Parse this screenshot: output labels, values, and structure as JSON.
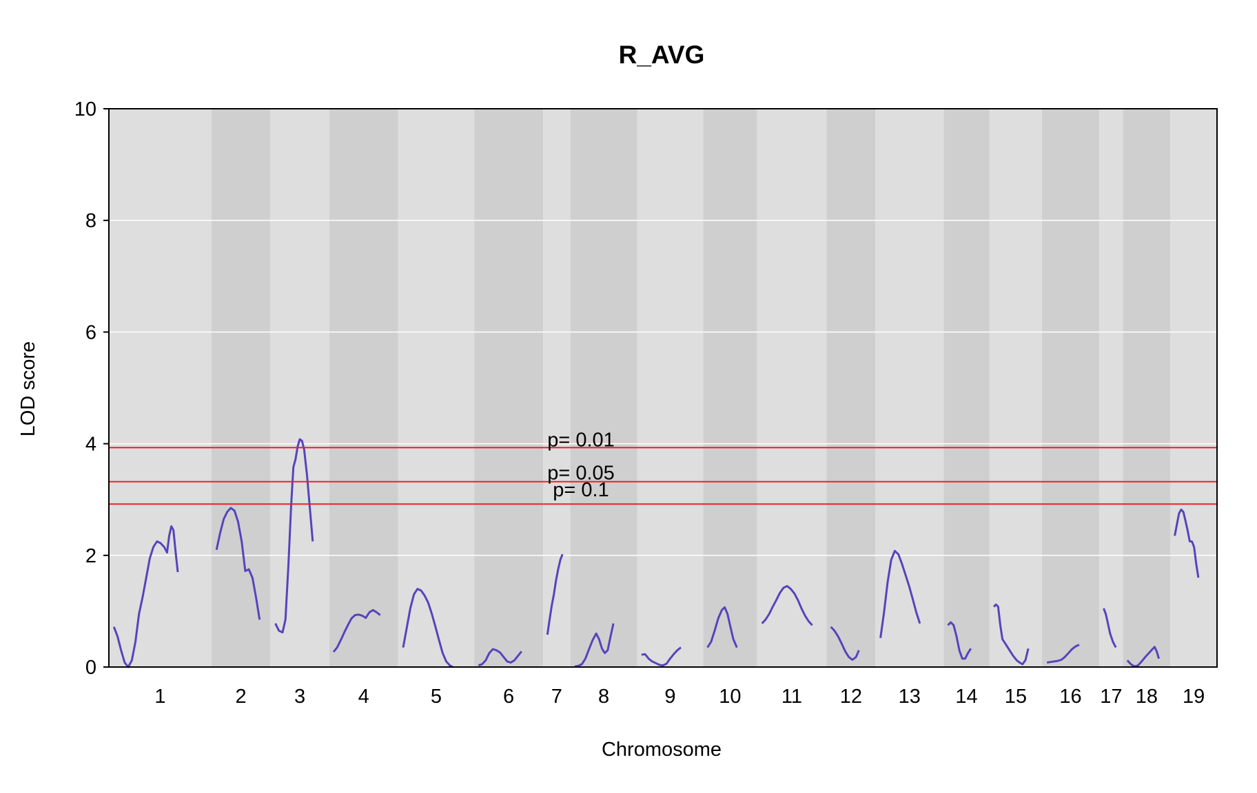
{
  "chart_data": {
    "type": "line",
    "title": "R_AVG",
    "xlabel": "Chromosome",
    "ylabel": "LOD score",
    "ylim": [
      0,
      10
    ],
    "yticks": [
      0,
      2,
      4,
      6,
      8,
      10
    ],
    "grid": true,
    "colors": {
      "curve": "#5544bb",
      "threshold": "#e8222a",
      "band_light": "#dedede",
      "band_dark": "#cfcfcf",
      "gridline": "#ffffff"
    },
    "thresholds": [
      {
        "label": "p= 0.01",
        "value": 3.93
      },
      {
        "label": "p= 0.05",
        "value": 3.32
      },
      {
        "label": "p= 0.1",
        "value": 2.92
      }
    ],
    "chromosomes": [
      {
        "label": "1",
        "span": [
          0,
          143
        ],
        "points": [
          [
            7,
            0.72
          ],
          [
            12,
            0.55
          ],
          [
            17,
            0.3
          ],
          [
            22,
            0.08
          ],
          [
            27,
            0.0
          ],
          [
            32,
            0.12
          ],
          [
            37,
            0.45
          ],
          [
            42,
            0.95
          ],
          [
            47,
            1.25
          ],
          [
            52,
            1.6
          ],
          [
            57,
            1.95
          ],
          [
            62,
            2.15
          ],
          [
            67,
            2.25
          ],
          [
            72,
            2.22
          ],
          [
            77,
            2.15
          ],
          [
            81,
            2.05
          ],
          [
            84,
            2.35
          ],
          [
            87,
            2.52
          ],
          [
            90,
            2.45
          ],
          [
            93,
            2.05
          ],
          [
            96,
            1.7
          ]
        ]
      },
      {
        "label": "2",
        "span": [
          143,
          225
        ],
        "points": [
          [
            150,
            2.1
          ],
          [
            155,
            2.4
          ],
          [
            160,
            2.65
          ],
          [
            165,
            2.78
          ],
          [
            170,
            2.85
          ],
          [
            175,
            2.8
          ],
          [
            180,
            2.6
          ],
          [
            185,
            2.25
          ],
          [
            190,
            1.72
          ],
          [
            195,
            1.75
          ],
          [
            200,
            1.6
          ],
          [
            205,
            1.25
          ],
          [
            210,
            0.85
          ]
        ]
      },
      {
        "label": "3",
        "span": [
          225,
          307
        ],
        "points": [
          [
            232,
            0.78
          ],
          [
            237,
            0.65
          ],
          [
            242,
            0.62
          ],
          [
            246,
            0.85
          ],
          [
            250,
            1.8
          ],
          [
            254,
            2.9
          ],
          [
            257,
            3.58
          ],
          [
            260,
            3.72
          ],
          [
            263,
            3.95
          ],
          [
            266,
            4.08
          ],
          [
            269,
            4.05
          ],
          [
            272,
            3.9
          ],
          [
            276,
            3.45
          ],
          [
            280,
            2.85
          ],
          [
            284,
            2.25
          ]
        ]
      },
      {
        "label": "4",
        "span": [
          307,
          403
        ],
        "points": [
          [
            313,
            0.27
          ],
          [
            318,
            0.35
          ],
          [
            323,
            0.48
          ],
          [
            328,
            0.62
          ],
          [
            333,
            0.75
          ],
          [
            338,
            0.87
          ],
          [
            343,
            0.93
          ],
          [
            348,
            0.94
          ],
          [
            353,
            0.92
          ],
          [
            358,
            0.88
          ],
          [
            363,
            0.98
          ],
          [
            368,
            1.02
          ],
          [
            373,
            0.98
          ],
          [
            378,
            0.93
          ]
        ]
      },
      {
        "label": "5",
        "span": [
          403,
          509
        ],
        "points": [
          [
            410,
            0.35
          ],
          [
            415,
            0.7
          ],
          [
            420,
            1.05
          ],
          [
            425,
            1.3
          ],
          [
            430,
            1.4
          ],
          [
            435,
            1.37
          ],
          [
            440,
            1.28
          ],
          [
            445,
            1.15
          ],
          [
            450,
            0.95
          ],
          [
            455,
            0.72
          ],
          [
            460,
            0.48
          ],
          [
            465,
            0.25
          ],
          [
            470,
            0.1
          ],
          [
            475,
            0.03
          ],
          [
            479,
            0.0
          ]
        ]
      },
      {
        "label": "6",
        "span": [
          509,
          605
        ],
        "points": [
          [
            515,
            0.03
          ],
          [
            520,
            0.05
          ],
          [
            525,
            0.12
          ],
          [
            530,
            0.25
          ],
          [
            535,
            0.32
          ],
          [
            540,
            0.3
          ],
          [
            545,
            0.26
          ],
          [
            550,
            0.18
          ],
          [
            555,
            0.1
          ],
          [
            560,
            0.08
          ],
          [
            565,
            0.12
          ],
          [
            570,
            0.2
          ],
          [
            575,
            0.28
          ]
        ]
      },
      {
        "label": "7",
        "span": [
          605,
          643
        ],
        "points": [
          [
            611,
            0.58
          ],
          [
            614,
            0.85
          ],
          [
            617,
            1.1
          ],
          [
            620,
            1.3
          ],
          [
            623,
            1.55
          ],
          [
            626,
            1.75
          ],
          [
            629,
            1.92
          ],
          [
            632,
            2.02
          ]
        ]
      },
      {
        "label": "8",
        "span": [
          643,
          736
        ],
        "points": [
          [
            649,
            0.01
          ],
          [
            654,
            0.02
          ],
          [
            659,
            0.05
          ],
          [
            664,
            0.15
          ],
          [
            669,
            0.32
          ],
          [
            674,
            0.48
          ],
          [
            679,
            0.6
          ],
          [
            683,
            0.5
          ],
          [
            687,
            0.33
          ],
          [
            691,
            0.25
          ],
          [
            695,
            0.3
          ],
          [
            699,
            0.55
          ],
          [
            703,
            0.78
          ]
        ]
      },
      {
        "label": "9",
        "span": [
          736,
          828
        ],
        "points": [
          [
            742,
            0.22
          ],
          [
            747,
            0.23
          ],
          [
            752,
            0.15
          ],
          [
            757,
            0.1
          ],
          [
            762,
            0.07
          ],
          [
            767,
            0.04
          ],
          [
            772,
            0.03
          ],
          [
            777,
            0.06
          ],
          [
            782,
            0.15
          ],
          [
            787,
            0.23
          ],
          [
            792,
            0.3
          ],
          [
            797,
            0.35
          ]
        ]
      },
      {
        "label": "10",
        "span": [
          828,
          903
        ],
        "points": [
          [
            834,
            0.35
          ],
          [
            839,
            0.45
          ],
          [
            844,
            0.65
          ],
          [
            849,
            0.87
          ],
          [
            854,
            1.02
          ],
          [
            858,
            1.07
          ],
          [
            862,
            0.95
          ],
          [
            866,
            0.72
          ],
          [
            870,
            0.5
          ],
          [
            875,
            0.35
          ]
        ]
      },
      {
        "label": "11",
        "span": [
          903,
          1000
        ],
        "points": [
          [
            910,
            0.78
          ],
          [
            915,
            0.85
          ],
          [
            920,
            0.95
          ],
          [
            925,
            1.08
          ],
          [
            930,
            1.2
          ],
          [
            935,
            1.33
          ],
          [
            940,
            1.42
          ],
          [
            945,
            1.45
          ],
          [
            950,
            1.4
          ],
          [
            955,
            1.32
          ],
          [
            960,
            1.2
          ],
          [
            965,
            1.05
          ],
          [
            970,
            0.92
          ],
          [
            975,
            0.82
          ],
          [
            980,
            0.75
          ]
        ]
      },
      {
        "label": "12",
        "span": [
          1000,
          1068
        ],
        "points": [
          [
            1006,
            0.72
          ],
          [
            1011,
            0.65
          ],
          [
            1016,
            0.55
          ],
          [
            1021,
            0.42
          ],
          [
            1026,
            0.28
          ],
          [
            1031,
            0.18
          ],
          [
            1036,
            0.13
          ],
          [
            1041,
            0.18
          ],
          [
            1045,
            0.3
          ]
        ]
      },
      {
        "label": "13",
        "span": [
          1068,
          1163
        ],
        "points": [
          [
            1075,
            0.52
          ],
          [
            1080,
            0.98
          ],
          [
            1085,
            1.52
          ],
          [
            1090,
            1.92
          ],
          [
            1095,
            2.08
          ],
          [
            1100,
            2.02
          ],
          [
            1105,
            1.85
          ],
          [
            1110,
            1.65
          ],
          [
            1115,
            1.45
          ],
          [
            1120,
            1.22
          ],
          [
            1125,
            0.98
          ],
          [
            1130,
            0.78
          ]
        ]
      },
      {
        "label": "14",
        "span": [
          1163,
          1227
        ],
        "points": [
          [
            1169,
            0.75
          ],
          [
            1173,
            0.8
          ],
          [
            1177,
            0.75
          ],
          [
            1181,
            0.55
          ],
          [
            1185,
            0.3
          ],
          [
            1189,
            0.15
          ],
          [
            1193,
            0.15
          ],
          [
            1197,
            0.25
          ],
          [
            1201,
            0.33
          ]
        ]
      },
      {
        "label": "15",
        "span": [
          1227,
          1300
        ],
        "points": [
          [
            1233,
            1.08
          ],
          [
            1236,
            1.12
          ],
          [
            1239,
            1.08
          ],
          [
            1242,
            0.75
          ],
          [
            1245,
            0.5
          ],
          [
            1250,
            0.4
          ],
          [
            1255,
            0.3
          ],
          [
            1260,
            0.2
          ],
          [
            1265,
            0.12
          ],
          [
            1269,
            0.08
          ],
          [
            1273,
            0.05
          ],
          [
            1277,
            0.12
          ],
          [
            1281,
            0.33
          ]
        ]
      },
      {
        "label": "16",
        "span": [
          1300,
          1380
        ],
        "points": [
          [
            1307,
            0.08
          ],
          [
            1312,
            0.09
          ],
          [
            1317,
            0.1
          ],
          [
            1322,
            0.11
          ],
          [
            1327,
            0.13
          ],
          [
            1332,
            0.18
          ],
          [
            1337,
            0.25
          ],
          [
            1342,
            0.32
          ],
          [
            1347,
            0.37
          ],
          [
            1352,
            0.4
          ]
        ]
      },
      {
        "label": "17",
        "span": [
          1380,
          1413
        ],
        "points": [
          [
            1386,
            1.05
          ],
          [
            1389,
            0.95
          ],
          [
            1392,
            0.78
          ],
          [
            1395,
            0.6
          ],
          [
            1399,
            0.45
          ],
          [
            1403,
            0.35
          ]
        ]
      },
      {
        "label": "18",
        "span": [
          1413,
          1479
        ],
        "points": [
          [
            1419,
            0.12
          ],
          [
            1424,
            0.05
          ],
          [
            1429,
            0.01
          ],
          [
            1434,
            0.03
          ],
          [
            1439,
            0.1
          ],
          [
            1444,
            0.18
          ],
          [
            1449,
            0.25
          ],
          [
            1454,
            0.32
          ],
          [
            1457,
            0.36
          ],
          [
            1460,
            0.28
          ],
          [
            1463,
            0.15
          ]
        ]
      },
      {
        "label": "19",
        "span": [
          1479,
          1544
        ],
        "points": [
          [
            1485,
            2.35
          ],
          [
            1488,
            2.55
          ],
          [
            1491,
            2.75
          ],
          [
            1494,
            2.82
          ],
          [
            1497,
            2.78
          ],
          [
            1500,
            2.62
          ],
          [
            1503,
            2.45
          ],
          [
            1506,
            2.25
          ],
          [
            1509,
            2.25
          ],
          [
            1512,
            2.15
          ],
          [
            1515,
            1.85
          ],
          [
            1518,
            1.6
          ]
        ]
      }
    ]
  }
}
